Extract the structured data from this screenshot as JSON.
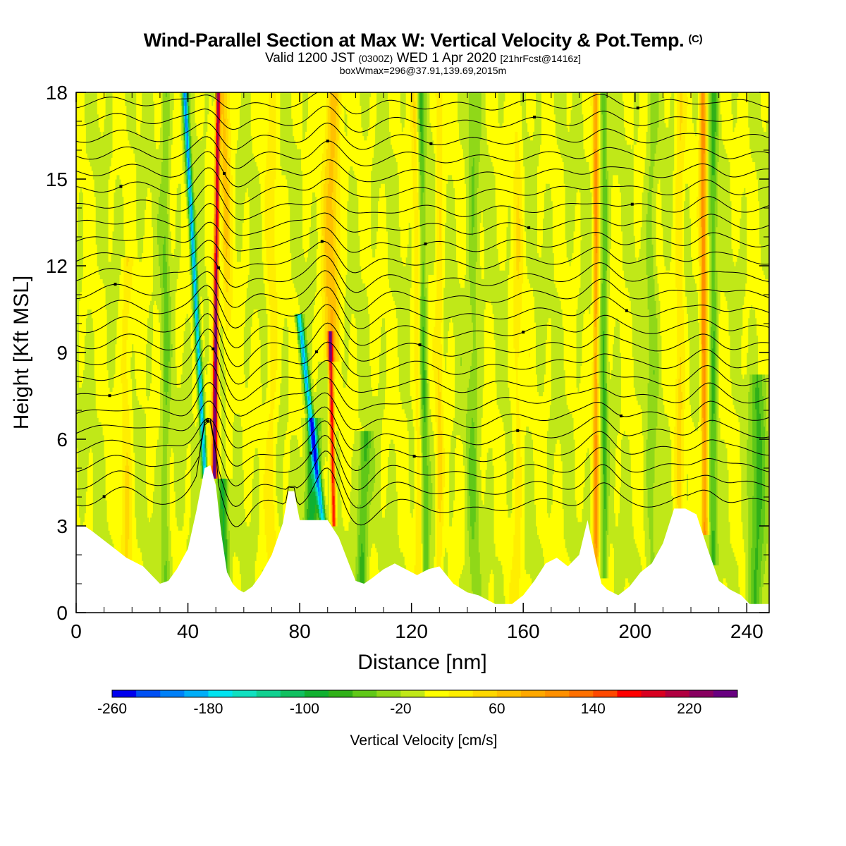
{
  "header": {
    "title": "Wind-Parallel Section at Max W: Vertical Velocity & Pot.Temp.",
    "title_mark": "(C)",
    "valid_prefix": "Valid 1200 JST",
    "valid_z": "(0300Z)",
    "valid_date": "WED 1 Apr 2020",
    "forecast": "[21hrFcst@1416z]",
    "box_info": "boxWmax=296@37.91,139.69,2015m"
  },
  "chart_data": {
    "type": "heatmap",
    "xlabel": "Distance [nm]",
    "ylabel": "Height [Kft MSL]",
    "xlim": [
      0,
      248
    ],
    "ylim": [
      0,
      18
    ],
    "x_ticks": [
      0,
      40,
      80,
      120,
      160,
      200,
      240
    ],
    "y_ticks": [
      0,
      3,
      6,
      9,
      12,
      15,
      18
    ],
    "x_tick_labels": [
      "0",
      "40",
      "80",
      "120",
      "160",
      "200",
      "240"
    ],
    "y_tick_labels": [
      "0",
      "3",
      "6",
      "9",
      "12",
      "15",
      "18"
    ],
    "terrain": {
      "x": [
        0,
        3,
        6,
        10,
        14,
        18,
        24,
        27,
        30,
        33,
        36,
        40,
        43,
        46,
        48,
        50,
        52,
        54,
        56,
        58,
        60,
        63,
        66,
        70,
        74,
        76,
        78,
        80,
        83,
        86,
        90,
        92,
        94,
        96,
        98,
        100,
        103,
        106,
        110,
        114,
        118,
        122,
        126,
        130,
        135,
        140,
        144,
        150,
        156,
        160,
        164,
        168,
        172,
        176,
        180,
        183,
        186,
        188,
        190,
        194,
        198,
        202,
        206,
        210,
        214,
        218,
        222,
        226,
        230,
        234,
        238,
        241,
        244,
        248
      ],
      "height": [
        3.0,
        3.0,
        2.8,
        2.5,
        2.2,
        1.9,
        1.6,
        1.3,
        1.0,
        1.1,
        1.5,
        2.2,
        3.5,
        5.0,
        5.1,
        4.4,
        2.7,
        1.4,
        1.0,
        0.8,
        0.7,
        0.9,
        1.3,
        2.0,
        3.1,
        4.2,
        4.2,
        3.2,
        3.2,
        3.2,
        3.2,
        2.9,
        2.6,
        2.1,
        1.6,
        1.1,
        1.0,
        1.2,
        1.5,
        1.7,
        1.5,
        1.3,
        1.5,
        1.6,
        1.0,
        0.7,
        0.6,
        0.3,
        0.3,
        0.6,
        1.1,
        1.7,
        1.9,
        1.6,
        2.0,
        3.2,
        1.8,
        1.0,
        0.8,
        0.6,
        0.9,
        1.4,
        1.7,
        2.4,
        3.6,
        3.6,
        3.4,
        2.2,
        1.1,
        0.8,
        0.6,
        0.3,
        0.3,
        0.3
      ]
    },
    "velocity_features": [
      {
        "x": 46,
        "w": 0.9,
        "z_bottom": 5.0,
        "z_top": 18,
        "slope": -0.55,
        "value": -200
      },
      {
        "x": 49.5,
        "w": 0.8,
        "z_bottom": 5.0,
        "z_top": 18,
        "slope": 0.1,
        "value": 230
      },
      {
        "x": 53,
        "w": 1.8,
        "z_bottom": 1.3,
        "z_top": 18,
        "slope": -0.15,
        "value": -90
      },
      {
        "x": 51.5,
        "w": 3.0,
        "z_bottom": 5.0,
        "z_top": 18,
        "slope": 0.05,
        "value": 90
      },
      {
        "x": 88.5,
        "w": 1.1,
        "z_bottom": 3.0,
        "z_top": 10,
        "slope": -1.2,
        "value": -180
      },
      {
        "x": 92.2,
        "w": 0.8,
        "z_bottom": 3.3,
        "z_top": 9.5,
        "slope": -0.2,
        "value": 190
      },
      {
        "x": 84,
        "w": 2.5,
        "z_bottom": 3.2,
        "z_top": 6.5,
        "slope": 0.2,
        "value": -100
      },
      {
        "x": 91,
        "w": 3.0,
        "z_bottom": 9.0,
        "z_top": 18,
        "slope": 0.1,
        "value": 70
      },
      {
        "x": 102,
        "w": 2.0,
        "z_bottom": 1.0,
        "z_top": 6.0,
        "slope": 0.3,
        "value": -70
      },
      {
        "x": 125,
        "w": 1.4,
        "z_bottom": 1.5,
        "z_top": 18,
        "slope": -0.1,
        "value": -60
      },
      {
        "x": 123,
        "w": 1.4,
        "z_bottom": 1.5,
        "z_top": 18,
        "slope": -0.1,
        "value": 40
      },
      {
        "x": 130,
        "w": 1.3,
        "z_bottom": 1.5,
        "z_top": 18,
        "slope": 0.0,
        "value": 40
      },
      {
        "x": 186,
        "w": 1.0,
        "z_bottom": 1.5,
        "z_top": 18,
        "slope": 0.0,
        "value": 100
      },
      {
        "x": 189,
        "w": 1.2,
        "z_bottom": 1.5,
        "z_top": 18,
        "slope": 0.0,
        "value": -60
      },
      {
        "x": 225,
        "w": 1.2,
        "z_bottom": 3.0,
        "z_top": 18,
        "slope": -0.05,
        "value": 110
      },
      {
        "x": 228,
        "w": 1.4,
        "z_bottom": 2.0,
        "z_top": 18,
        "slope": 0.0,
        "value": -60
      },
      {
        "x": 243,
        "w": 3.0,
        "z_bottom": 0.3,
        "z_top": 8.0,
        "slope": 0.2,
        "value": -60
      },
      {
        "x": 32,
        "w": 1.6,
        "z_bottom": 1.1,
        "z_top": 18,
        "slope": 0.0,
        "value": -40
      },
      {
        "x": 18,
        "w": 2.0,
        "z_bottom": 2.0,
        "z_top": 12,
        "slope": 0.0,
        "value": 35
      },
      {
        "x": 70,
        "w": 2.0,
        "z_bottom": 2.0,
        "z_top": 18,
        "slope": 0.0,
        "value": 30
      },
      {
        "x": 142,
        "w": 2.2,
        "z_bottom": 0.7,
        "z_top": 18,
        "slope": 0.0,
        "value": -35
      },
      {
        "x": 158,
        "w": 1.8,
        "z_bottom": 0.5,
        "z_top": 18,
        "slope": 0.0,
        "value": 30
      },
      {
        "x": 206,
        "w": 2.0,
        "z_bottom": 1.5,
        "z_top": 18,
        "slope": 0.0,
        "value": -30
      },
      {
        "x": 216,
        "w": 1.6,
        "z_bottom": 1.5,
        "z_top": 18,
        "slope": 0.0,
        "value": 40
      }
    ],
    "isentropes": {
      "levels_kft": [
        3.8,
        4.4,
        5.0,
        5.6,
        6.2,
        6.8,
        7.4,
        8.0,
        8.6,
        9.2,
        9.8,
        10.4,
        11.0,
        11.6,
        12.2,
        12.8,
        13.4,
        14.0,
        14.6,
        15.2,
        15.8,
        16.4,
        17.0,
        17.6
      ],
      "waves": [
        {
          "x": 48,
          "amp": 1.6,
          "width": 6
        },
        {
          "x": 56,
          "amp": -0.9,
          "width": 7
        },
        {
          "x": 90,
          "amp": 1.2,
          "width": 6
        },
        {
          "x": 100,
          "amp": -0.7,
          "width": 8
        },
        {
          "x": 188,
          "amp": 0.6,
          "width": 6
        },
        {
          "x": 226,
          "amp": 0.5,
          "width": 6
        },
        {
          "x": 18,
          "amp": 0.4,
          "width": 10
        },
        {
          "x": 140,
          "amp": -0.3,
          "width": 14
        }
      ]
    },
    "colorbar": {
      "label": "Vertical Velocity [cm/s]",
      "min": -260,
      "max": 260,
      "step": 20,
      "tick_labels": [
        "-260",
        "-180",
        "-100",
        "-20",
        "60",
        "140",
        "220"
      ],
      "tick_values": [
        -260,
        -180,
        -100,
        -20,
        60,
        140,
        220
      ],
      "colors": [
        "#0000ee",
        "#0050f4",
        "#0080f8",
        "#00aef8",
        "#00e4f0",
        "#10e0c0",
        "#10d090",
        "#10c060",
        "#10b030",
        "#30b018",
        "#60c818",
        "#90d818",
        "#c0e818",
        "#ffff00",
        "#ffee00",
        "#ffd800",
        "#ffc000",
        "#ffa800",
        "#ff9000",
        "#ff7000",
        "#ff4800",
        "#ff0000",
        "#d80020",
        "#b00040",
        "#880060",
        "#680080"
      ]
    }
  }
}
